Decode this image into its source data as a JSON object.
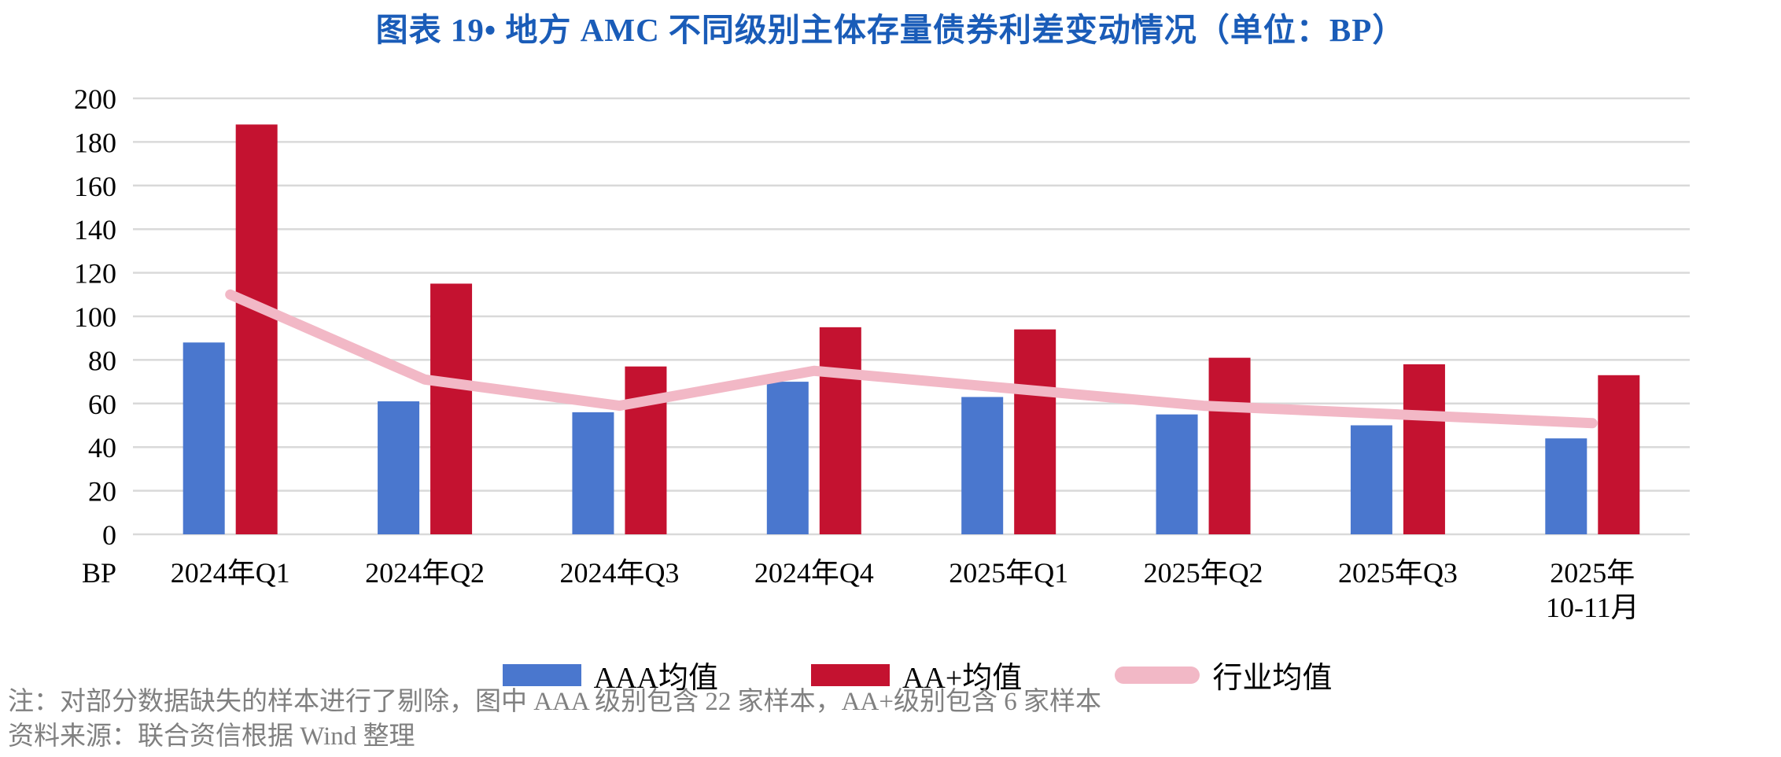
{
  "page": {
    "title": "图表 19• 地方 AMC 不同级别主体存量债券利差变动情况（单位：BP）"
  },
  "chart_data": {
    "type": "bar",
    "subtype": "grouped-bars-with-line-overlay",
    "title": "图表 19• 地方 AMC 不同级别主体存量债券利差变动情况（单位：BP）",
    "unit": "BP",
    "categories": [
      "2024年Q1",
      "2024年Q2",
      "2024年Q3",
      "2024年Q4",
      "2025年Q1",
      "2025年Q2",
      "2025年Q3",
      "2025年\n10-11月"
    ],
    "series": [
      {
        "name": "AAA均值",
        "type": "bar",
        "color": "#4A77CE",
        "values": [
          88,
          61,
          56,
          70,
          63,
          55,
          50,
          44
        ]
      },
      {
        "name": "AA+均值",
        "type": "bar",
        "color": "#C41230",
        "values": [
          188,
          115,
          77,
          95,
          94,
          81,
          78,
          73
        ]
      },
      {
        "name": "行业均值",
        "type": "line",
        "color": "#F2B8C6",
        "values": [
          110,
          71,
          59,
          75,
          67,
          59,
          55,
          51
        ]
      }
    ],
    "ylim": [
      0,
      200
    ],
    "ytick_step": 20,
    "grid": true,
    "legend_position": "bottom"
  },
  "notes": {
    "line1": "注：对部分数据缺失的样本进行了剔除，图中 AAA 级别包含 22 家样本，AA+级别包含 6 家样本",
    "line2": "资料来源：联合资信根据 Wind 整理"
  },
  "colors": {
    "title": "#1A5CB8",
    "grid": "#D9D9D9",
    "axis_text": "#000000",
    "note_text": "#808080",
    "background": "#FFFFFF"
  }
}
